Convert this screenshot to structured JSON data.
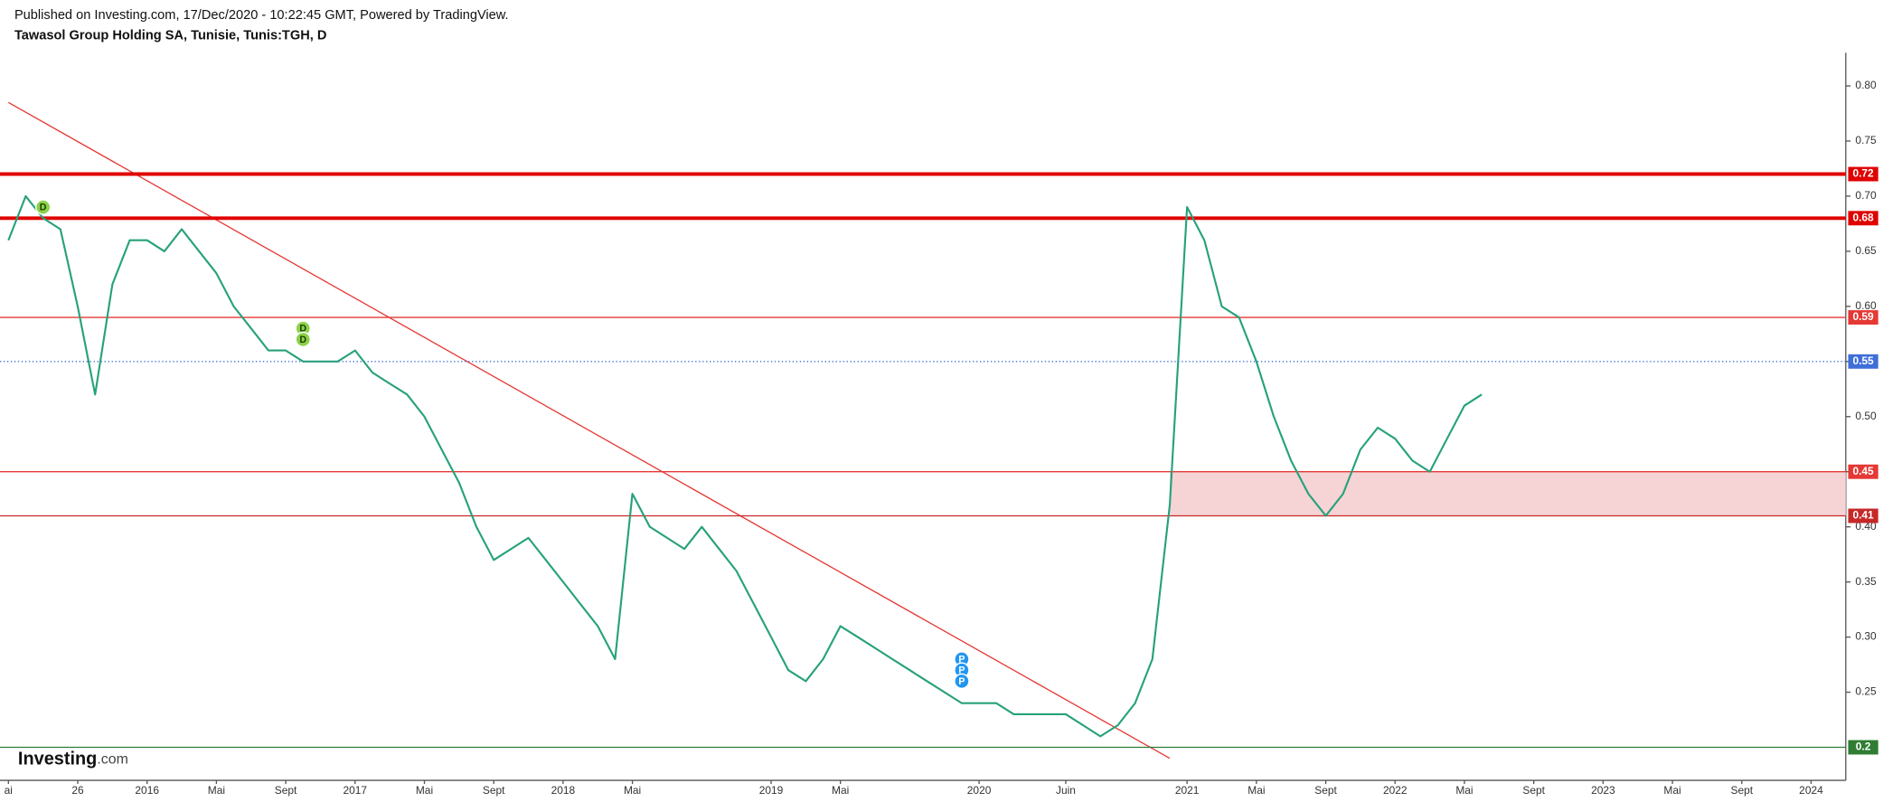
{
  "chart_data": {
    "type": "line",
    "publisher": "Published on Investing.com, 17/Dec/2020 - 10:22:45 GMT, Powered by TradingView.",
    "title": "Tawasol Group Holding SA, Tunisie, Tunis:TGH, D",
    "logo": {
      "brand": "Investing",
      "suffix": ".com"
    },
    "x": [
      "2015-05",
      "2015-06",
      "2015-07",
      "2015-08",
      "2015-09",
      "2015-10",
      "2015-11",
      "2015-12",
      "2016-01",
      "2016-02",
      "2016-03",
      "2016-04",
      "2016-05",
      "2016-06",
      "2016-07",
      "2016-08",
      "2016-09",
      "2016-10",
      "2016-11",
      "2016-12",
      "2017-01",
      "2017-02",
      "2017-03",
      "2017-04",
      "2017-05",
      "2017-06",
      "2017-07",
      "2017-08",
      "2017-09",
      "2017-10",
      "2017-11",
      "2017-12",
      "2018-01",
      "2018-02",
      "2018-03",
      "2018-04",
      "2018-05",
      "2018-06",
      "2018-07",
      "2018-08",
      "2018-09",
      "2018-10",
      "2018-11",
      "2018-12",
      "2019-01",
      "2019-02",
      "2019-03",
      "2019-04",
      "2019-05",
      "2019-06",
      "2019-07",
      "2019-08",
      "2019-09",
      "2019-10",
      "2019-11",
      "2019-12",
      "2020-01",
      "2020-02",
      "2020-03",
      "2020-04",
      "2020-05",
      "2020-06",
      "2020-07",
      "2020-08",
      "2020-09",
      "2020-10",
      "2020-11",
      "2020-12",
      "2021-01",
      "2021-02",
      "2021-03",
      "2021-04",
      "2021-05",
      "2021-06",
      "2021-07",
      "2021-08",
      "2021-09",
      "2021-10",
      "2021-11",
      "2021-12",
      "2022-01",
      "2022-02",
      "2022-03",
      "2022-04",
      "2022-05",
      "2022-06"
    ],
    "series": [
      {
        "color": "#26a17b",
        "values": [
          0.66,
          0.7,
          0.68,
          0.67,
          0.6,
          0.52,
          0.62,
          0.66,
          0.66,
          0.65,
          0.67,
          0.65,
          0.63,
          0.6,
          0.58,
          0.56,
          0.56,
          0.55,
          0.55,
          0.55,
          0.56,
          0.54,
          0.53,
          0.52,
          0.5,
          0.47,
          0.44,
          0.4,
          0.37,
          0.38,
          0.39,
          0.37,
          0.35,
          0.33,
          0.31,
          0.28,
          0.43,
          0.4,
          0.39,
          0.38,
          0.4,
          0.38,
          0.36,
          0.33,
          0.3,
          0.27,
          0.26,
          0.28,
          0.31,
          0.3,
          0.29,
          0.28,
          0.27,
          0.26,
          0.25,
          0.24,
          0.24,
          0.24,
          0.23,
          0.23,
          0.23,
          0.23,
          0.22,
          0.21,
          0.22,
          0.24,
          0.28,
          0.42,
          0.69,
          0.66,
          0.6,
          0.59,
          0.55,
          0.5,
          0.46,
          0.43,
          0.41,
          0.43,
          0.47,
          0.49,
          0.48,
          0.46,
          0.45,
          0.48,
          0.51,
          0.52
        ]
      }
    ],
    "trendline": {
      "color": "#e53935",
      "x": [
        "2015-05",
        "2020-12"
      ],
      "values": [
        0.785,
        0.19
      ]
    },
    "levels": [
      {
        "value": 0.72,
        "color": "#e00000",
        "style": "thick"
      },
      {
        "value": 0.68,
        "color": "#e00000",
        "style": "thick"
      },
      {
        "value": 0.59,
        "color": "#e53935",
        "style": "thin"
      },
      {
        "value": 0.55,
        "color": "#3f6fd8",
        "style": "dotted"
      },
      {
        "value": 0.45,
        "color": "#e53935",
        "style": "thin"
      },
      {
        "value": 0.41,
        "color": "#c62828",
        "style": "thin"
      },
      {
        "value": 0.2,
        "color": "#2e7d32",
        "style": "thin"
      }
    ],
    "zone": {
      "from": 0.41,
      "to": 0.45,
      "start": "2020-12",
      "color": "#f6d3d4"
    },
    "markers": [
      {
        "label": "D",
        "x": "2015-07",
        "y": 0.69,
        "color": "#8bd14a"
      },
      {
        "label": "D",
        "x": "2016-10",
        "y": 0.58,
        "color": "#8bd14a"
      },
      {
        "label": "D",
        "x": "2016-10",
        "y": 0.57,
        "color": "#8bd14a"
      },
      {
        "label": "P",
        "x": "2019-12",
        "y": 0.28,
        "color": "#2196f3"
      },
      {
        "label": "P",
        "x": "2019-12",
        "y": 0.27,
        "color": "#2196f3"
      },
      {
        "label": "P",
        "x": "2019-12",
        "y": 0.26,
        "color": "#2196f3"
      }
    ],
    "xlim": [
      "2015-05",
      "2024-03"
    ],
    "xticks": [
      {
        "value": "2015-05",
        "label": "ai"
      },
      {
        "value": "2015-09",
        "label": "26"
      },
      {
        "value": "2016-01",
        "label": "2016"
      },
      {
        "value": "2016-05",
        "label": "Mai"
      },
      {
        "value": "2016-09",
        "label": "Sept"
      },
      {
        "value": "2017-01",
        "label": "2017"
      },
      {
        "value": "2017-05",
        "label": "Mai"
      },
      {
        "value": "2017-09",
        "label": "Sept"
      },
      {
        "value": "2018-01",
        "label": "2018"
      },
      {
        "value": "2018-05",
        "label": "Mai"
      },
      {
        "value": "2019-01",
        "label": "2019"
      },
      {
        "value": "2019-05",
        "label": "Mai"
      },
      {
        "value": "2020-01",
        "label": "2020"
      },
      {
        "value": "2020-06",
        "label": "Juin"
      },
      {
        "value": "2021-01",
        "label": "2021"
      },
      {
        "value": "2021-05",
        "label": "Mai"
      },
      {
        "value": "2021-09",
        "label": "Sept"
      },
      {
        "value": "2022-01",
        "label": "2022"
      },
      {
        "value": "2022-05",
        "label": "Mai"
      },
      {
        "value": "2022-09",
        "label": "Sept"
      },
      {
        "value": "2023-01",
        "label": "2023"
      },
      {
        "value": "2023-05",
        "label": "Mai"
      },
      {
        "value": "2023-09",
        "label": "Sept"
      },
      {
        "value": "2024-01",
        "label": "2024"
      }
    ],
    "ylim": [
      0.17,
      0.83
    ],
    "yticks": [
      {
        "value": 0.25,
        "label": "0.25"
      },
      {
        "value": 0.3,
        "label": "0.30"
      },
      {
        "value": 0.35,
        "label": "0.35"
      },
      {
        "value": 0.4,
        "label": "0.40"
      },
      {
        "value": 0.45,
        "label": "0.45"
      },
      {
        "value": 0.5,
        "label": "0.50"
      },
      {
        "value": 0.55,
        "label": "0.55"
      },
      {
        "value": 0.6,
        "label": "0.60"
      },
      {
        "value": 0.65,
        "label": "0.65"
      },
      {
        "value": 0.7,
        "label": "0.70"
      },
      {
        "value": 0.75,
        "label": "0.75"
      },
      {
        "value": 0.8,
        "label": "0.80"
      }
    ]
  }
}
